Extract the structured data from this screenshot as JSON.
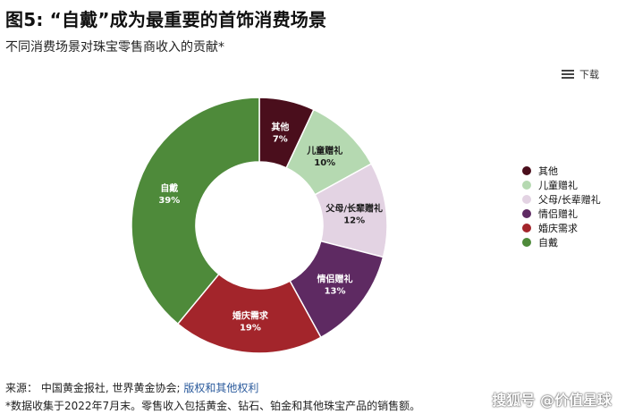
{
  "header": {
    "title": "图5: “自戴”成为最重要的首饰消费场景",
    "subtitle": "不同消费场景对珠宝零售商收入的贡献*"
  },
  "toolbar": {
    "download_label": "下载",
    "menu_icon": "menu-icon"
  },
  "chart_data": {
    "type": "pie",
    "donut": true,
    "slices": [
      {
        "name": "其他",
        "value": 7,
        "label": "7%",
        "color": "#4a0e1c",
        "label_color": "#ffffff"
      },
      {
        "name": "儿童赠礼",
        "value": 10,
        "label": "10%",
        "color": "#b5d9b1",
        "label_color": "#1a1a1a"
      },
      {
        "name": "父母/长辈赠礼",
        "value": 12,
        "label": "12%",
        "color": "#e3d3e3",
        "label_color": "#1a1a1a"
      },
      {
        "name": "情侣赠礼",
        "value": 13,
        "label": "13%",
        "color": "#5e2a62",
        "label_color": "#ffffff"
      },
      {
        "name": "婚庆需求",
        "value": 19,
        "label": "19%",
        "color": "#a3252b",
        "label_color": "#ffffff"
      },
      {
        "name": "自戴",
        "value": 39,
        "label": "39%",
        "color": "#4e8a3a",
        "label_color": "#ffffff"
      }
    ],
    "legend_position": "right"
  },
  "footer": {
    "source_prefix": "来源：  中国黄金报社, 世界黄金协会; ",
    "source_link": "版权和其他权利",
    "footnote": "*数据收集于2022年7月末。零售收入包括黄金、钻石、铂金和其他珠宝产品的销售额。",
    "watermark": "搜狐号 @价值星球"
  }
}
